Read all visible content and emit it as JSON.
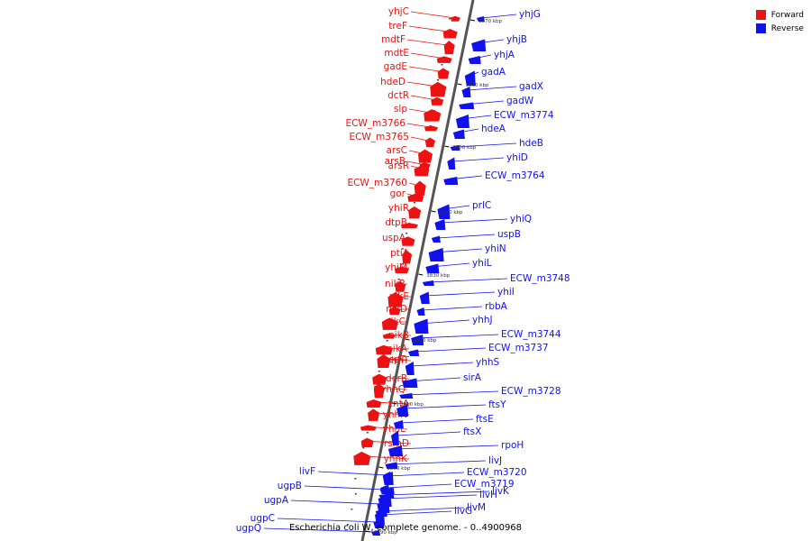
{
  "title": "Escherichia coli W, complete genome. - 0..4900968",
  "legend": {
    "forward": "Forward",
    "reverse": "Reverse"
  },
  "colors": {
    "forward": "#ee1111",
    "reverse": "#1111ee",
    "axis": "#555555"
  },
  "ticks": [
    "3870 kbp",
    "3860 kbp",
    "3850 kbp",
    "3840 kbp",
    "3830 kbp",
    "3820 kbp",
    "3810 kbp",
    "3800 kbp",
    "3790 kbp"
  ],
  "forward_genes": [
    "yhjC",
    "treF",
    "mdtF",
    "mdtE",
    "gadE",
    "hdeD",
    "dctR",
    "slp",
    "ECW_m3766",
    "ECW_m3765",
    "arsC",
    "arsB",
    "arsR",
    "ECW_m3760",
    "gor",
    "yhiR",
    "dtpB",
    "uspA",
    "ptiA",
    "yhiM",
    "nikR",
    "nikE",
    "nikD",
    "nikC",
    "nikB",
    "nikA",
    "acpT",
    "yhhT",
    "dcrB",
    "yhhQ",
    "zntA",
    "yhhN",
    "yhhL",
    "rsmD",
    "yhhK"
  ],
  "reverse_genes": [
    "yhjG",
    "yhjB",
    "yhjA",
    "gadA",
    "gadX",
    "gadW",
    "ECW_m3774",
    "hdeA",
    "hdeB",
    "yhiD",
    "ECW_m3764",
    "prlC",
    "yhiQ",
    "uspB",
    "yhiN",
    "yhiL",
    "ECW_m3748",
    "yhiI",
    "rbbA",
    "yhhJ",
    "ECW_m3744",
    "ECW_m3737",
    "yhhS",
    "sirA",
    "ECW_m3728",
    "ftsY",
    "ftsE",
    "ftsX",
    "rpoH",
    "livJ",
    "ECW_m3720",
    "ECW_m3719",
    "livK",
    "livH",
    "livM",
    "livG",
    "livF",
    "ugpB",
    "ugpA",
    "ugpC",
    "ugpQ"
  ]
}
